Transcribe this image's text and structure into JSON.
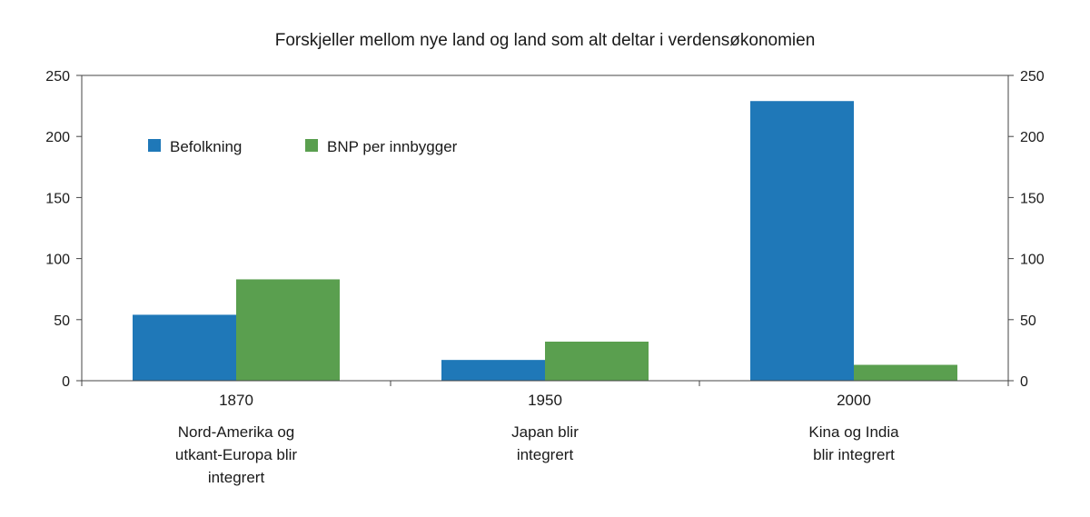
{
  "chart_data": {
    "type": "bar",
    "title": "Forskjeller mellom nye land og land som alt deltar i verdensøkonomien",
    "categories": [
      "1870",
      "1950",
      "2000"
    ],
    "category_descriptions": [
      [
        "Nord-Amerika og",
        "utkant-Europa blir",
        "integrert"
      ],
      [
        "Japan blir",
        "integrert"
      ],
      [
        "Kina og India",
        "blir integrert"
      ]
    ],
    "series": [
      {
        "name": "Befolkning",
        "color": "#1f78b8",
        "values": [
          54,
          17,
          229
        ]
      },
      {
        "name": "BNP per innbygger",
        "color": "#5a9f4f",
        "values": [
          83,
          32,
          13
        ]
      }
    ],
    "ylim": [
      0,
      250
    ],
    "yticks": [
      0,
      50,
      100,
      150,
      200,
      250
    ],
    "secondary_axis": true,
    "legend_position": "top-left",
    "grid": false
  }
}
